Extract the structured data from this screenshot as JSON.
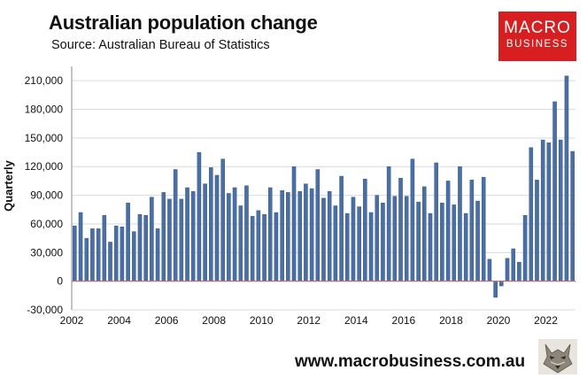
{
  "header": {
    "title": "Australian population change",
    "subtitle": "Source: Australian Bureau of Statistics"
  },
  "logo": {
    "line1": "MACRO",
    "line2": "BUSINESS",
    "color": "#d71f22"
  },
  "footer": {
    "website": "www.macrobusiness.com.au",
    "mascot_icon": "wolf-icon"
  },
  "colors": {
    "bar": "#4a6fa5",
    "bar_edge": "#2f4f7f",
    "grid": "#d9d9d9",
    "zero_line": "#c07070"
  },
  "chart_data": {
    "type": "bar",
    "ylabel": "Quarterly",
    "ylim": [
      -30000,
      225000
    ],
    "yticks": [
      -30000,
      0,
      30000,
      60000,
      90000,
      120000,
      150000,
      180000,
      210000
    ],
    "ytick_labels": [
      "-30,000",
      "0",
      "30,000",
      "60,000",
      "90,000",
      "120,000",
      "150,000",
      "180,000",
      "210,000"
    ],
    "xticks": [
      "2002",
      "2004",
      "2006",
      "2008",
      "2010",
      "2012",
      "2014",
      "2016",
      "2018",
      "2020",
      "2022"
    ],
    "first_quarter": "2002 Q1",
    "grid": true,
    "series": [
      {
        "values": [
          58000,
          72000,
          45000,
          55000,
          55000,
          69000,
          41000,
          58000,
          57000,
          82000,
          52000,
          70000,
          69000,
          88000,
          55000,
          93000,
          86000,
          117000,
          86000,
          98000,
          94000,
          135000,
          102000,
          119000,
          111000,
          128000,
          92000,
          98000,
          79000,
          100000,
          68000,
          74000,
          70000,
          98000,
          72000,
          95000,
          93000,
          120000,
          94000,
          102000,
          97000,
          117000,
          87000,
          94000,
          79000,
          110000,
          71000,
          88000,
          78000,
          107000,
          72000,
          90000,
          82000,
          120000,
          89000,
          108000,
          89000,
          128000,
          83000,
          99000,
          71000,
          124000,
          82000,
          105000,
          80000,
          120000,
          71000,
          106000,
          84000,
          109000,
          23000,
          -17000,
          -5000,
          24000,
          34000,
          20000,
          69000,
          140000,
          106000,
          148000,
          145000,
          188000,
          148000,
          215000,
          136000
        ]
      }
    ]
  }
}
